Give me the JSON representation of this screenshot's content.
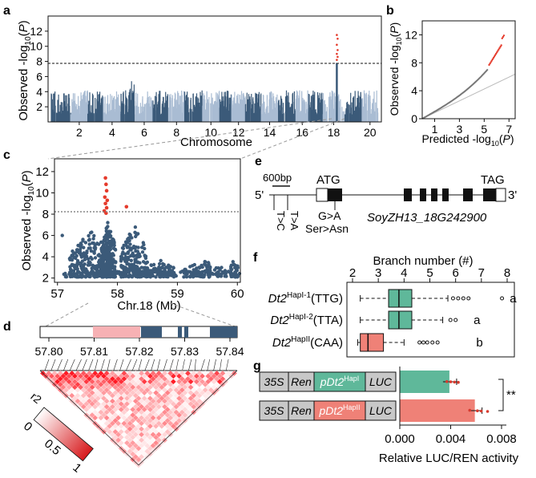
{
  "colors": {
    "dark_blue": "#3b5a79",
    "light_blue": "#a9bcd3",
    "red": "#e53b2c",
    "green": "#5fb89a",
    "salmon": "#ef8177",
    "pink": "#f7b1b4",
    "gray_box": "#c8c8c8"
  },
  "panels": {
    "a": {
      "label": "a",
      "ylabel": "Observed -log10(P)",
      "xlabel": "Chromosome",
      "yticks": [
        "2",
        "4",
        "6",
        "8",
        "10",
        "12"
      ],
      "xticks": [
        "2",
        "4",
        "6",
        "8",
        "10",
        "12",
        "14",
        "16",
        "18",
        "20"
      ],
      "threshold": 8
    },
    "b": {
      "label": "b",
      "ylabel": "Observed -log10(P)",
      "xlabel": "Predicted -log10(P)",
      "yticks": [
        "0",
        "4",
        "8",
        "12"
      ],
      "xticks": [
        "1",
        "3",
        "5",
        "7"
      ]
    },
    "c": {
      "label": "c",
      "ylabel": "Observed -log10(P)",
      "xlabel": "Chr.18 (Mb)",
      "yticks": [
        "2",
        "4",
        "6",
        "8",
        "10",
        "12"
      ],
      "xticks": [
        "57",
        "58",
        "59",
        "60"
      ],
      "threshold": 8
    },
    "d": {
      "label": "d",
      "ticks": [
        "57.80",
        "57.81",
        "57.82",
        "57.83",
        "57.84"
      ],
      "legend_title": "r2",
      "legend_ticks": [
        "0",
        "0.5",
        "1"
      ]
    },
    "e": {
      "label": "e",
      "scale": "600bp",
      "five_prime": "5'",
      "three_prime": "3'",
      "atg": "ATG",
      "tag": "TAG",
      "variants": [
        "T>C",
        "T>A",
        "G>A"
      ],
      "aa_change": "Ser>Asn",
      "gene": "SoyZH13_18G242900"
    },
    "f": {
      "label": "f",
      "title": "Branch number (#)",
      "xticks": [
        "2",
        "3",
        "4",
        "5",
        "6",
        "7",
        "8"
      ],
      "rows": [
        {
          "gene": "Dt2",
          "hap": "HapI-1",
          "code": "(TTG)",
          "letter": "a"
        },
        {
          "gene": "Dt2",
          "hap": "HapI-2",
          "code": "(TTA)",
          "letter": "a"
        },
        {
          "gene": "Dt2",
          "hap": "HapII",
          "code": "(CAA)",
          "letter": "b"
        }
      ]
    },
    "g": {
      "label": "g",
      "xlabel": "Relative LUC/REN activity",
      "xticks": [
        "0.000",
        "0.004",
        "0.008"
      ],
      "significance": "**",
      "constructs": [
        {
          "p35s": "35S",
          "ren": "Ren",
          "promoter": "pDt2",
          "hap": "HapI",
          "luc": "LUC",
          "value": 0.0039
        },
        {
          "p35s": "35S",
          "ren": "Ren",
          "promoter": "pDt2",
          "hap": "HapII",
          "luc": "LUC",
          "value": 0.0059
        }
      ]
    }
  }
}
